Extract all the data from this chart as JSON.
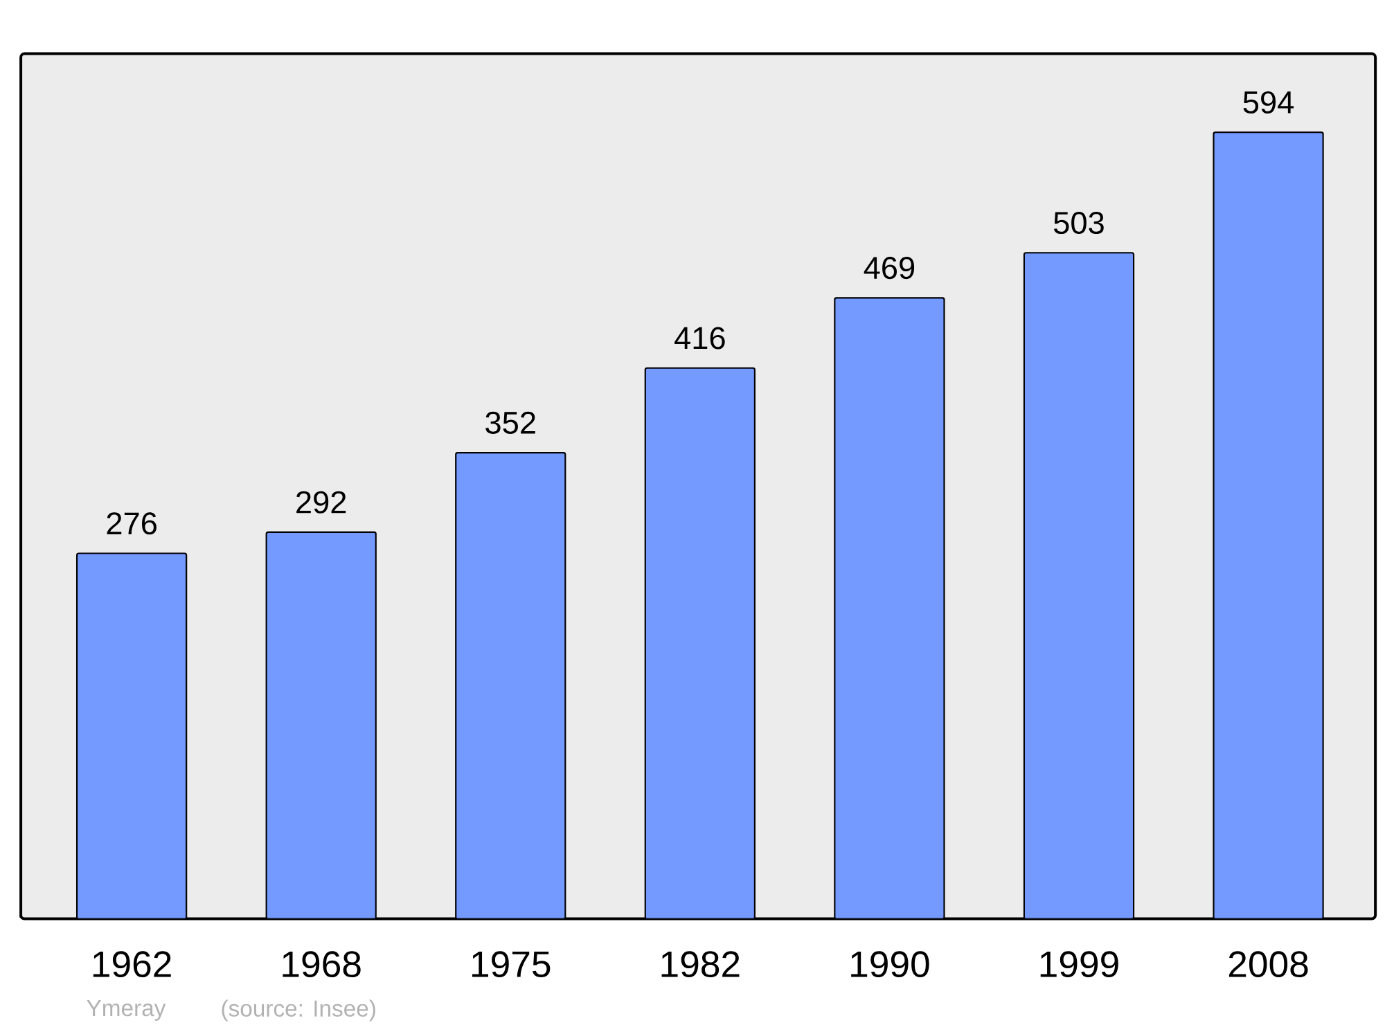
{
  "chart_data": {
    "type": "bar",
    "categories": [
      "1962",
      "1968",
      "1975",
      "1982",
      "1990",
      "1999",
      "2008"
    ],
    "values": [
      276,
      292,
      352,
      416,
      469,
      503,
      594
    ],
    "color": "#7499ff",
    "data_labels": true,
    "annotations": [
      "Ymeray",
      "(source: Insee)"
    ]
  }
}
